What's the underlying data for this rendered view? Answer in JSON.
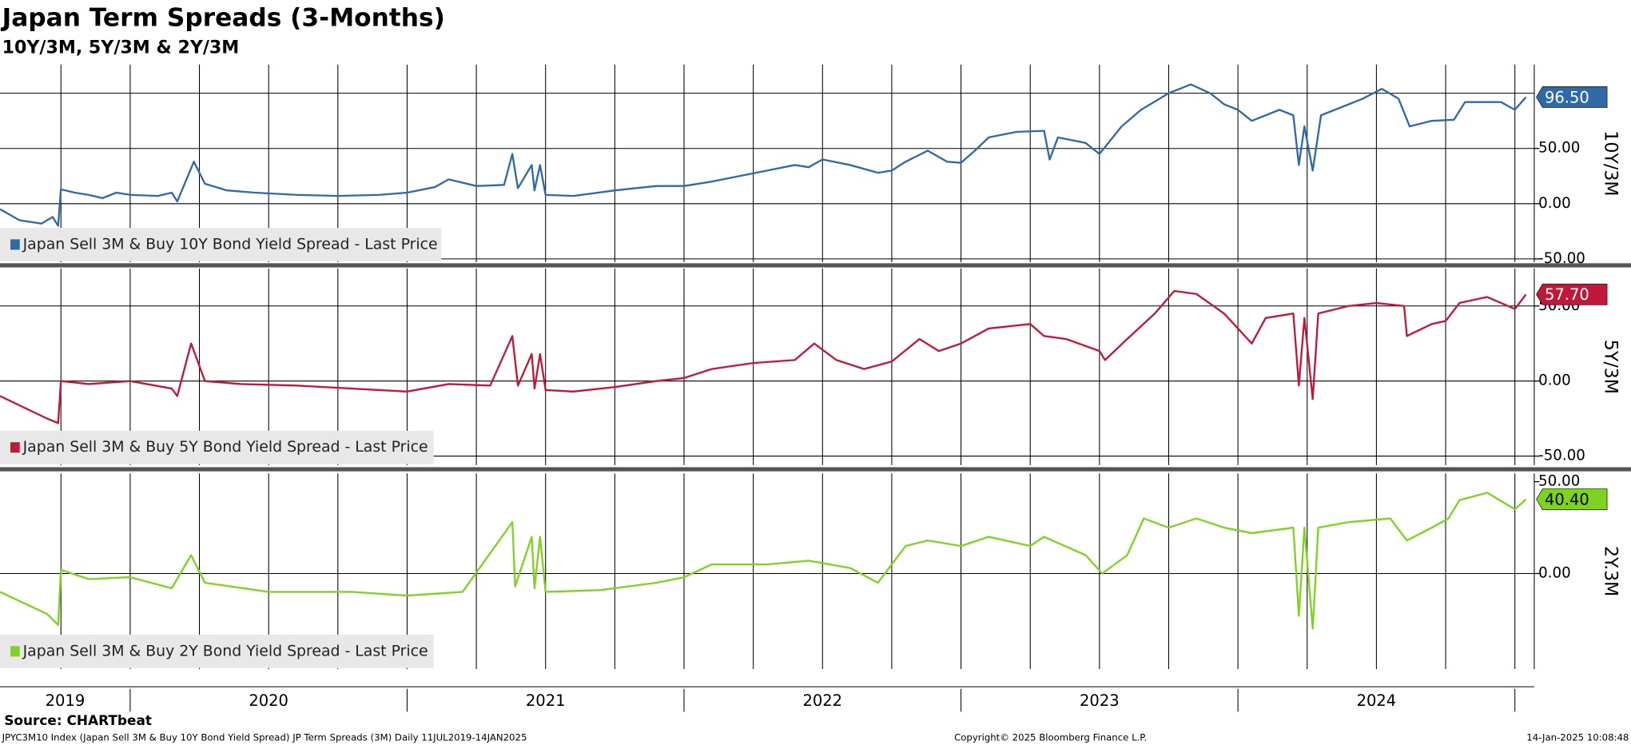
{
  "header": {
    "title": "Japan Term Spreads (3-Months)",
    "subtitle": "10Y/3M, 5Y/3M & 2Y/3M"
  },
  "footer": {
    "source": "Source: CHARTbeat",
    "info": "JPYC3M10 Index (Japan Sell 3M & Buy 10Y Bond Yield Spread) JP Term Spreads (3M)  Daily 11JUL2019-14JAN2025",
    "copyright": "Copyright© 2025 Bloomberg Finance L.P.",
    "timestamp": "14-Jan-2025 10:08:48"
  },
  "chart_data": [
    {
      "type": "line",
      "axis_label": "10Y/3M",
      "xlim": [
        2019.53,
        2025.07
      ],
      "ylim": [
        -53,
        126
      ],
      "xgrid": [
        2019.75,
        2020,
        2020.25,
        2020.5,
        2020.75,
        2021,
        2021.25,
        2021.5,
        2021.75,
        2022,
        2022.25,
        2022.5,
        2022.75,
        2023,
        2023.25,
        2023.5,
        2023.75,
        2024,
        2024.25,
        2024.5,
        2024.75,
        2025
      ],
      "yticks": [
        {
          "value": -50,
          "label": "-50.00"
        },
        {
          "value": 0,
          "label": "0.00"
        },
        {
          "value": 50,
          "label": "50.00"
        }
      ],
      "ygrid": [
        -50,
        0,
        50,
        100
      ],
      "last_label": "96.50",
      "tag_text_color": "#ffffff",
      "x": [
        2019.53,
        2019.6,
        2019.68,
        2019.72,
        2019.74,
        2019.75,
        2019.8,
        2019.85,
        2019.9,
        2019.95,
        2020.0,
        2020.1,
        2020.15,
        2020.17,
        2020.2,
        2020.23,
        2020.27,
        2020.35,
        2020.45,
        2020.6,
        2020.75,
        2020.9,
        2021.0,
        2021.1,
        2021.15,
        2021.25,
        2021.35,
        2021.38,
        2021.4,
        2021.45,
        2021.46,
        2021.48,
        2021.5,
        2021.6,
        2021.75,
        2021.9,
        2022.0,
        2022.1,
        2022.2,
        2022.3,
        2022.4,
        2022.45,
        2022.5,
        2022.6,
        2022.7,
        2022.75,
        2022.8,
        2022.88,
        2022.95,
        2023.0,
        2023.05,
        2023.1,
        2023.2,
        2023.3,
        2023.32,
        2023.35,
        2023.45,
        2023.5,
        2023.58,
        2023.65,
        2023.75,
        2023.83,
        2023.9,
        2023.95,
        2024.0,
        2024.05,
        2024.1,
        2024.15,
        2024.2,
        2024.22,
        2024.24,
        2024.27,
        2024.3,
        2024.45,
        2024.52,
        2024.58,
        2024.62,
        2024.7,
        2024.78,
        2024.82,
        2024.95,
        2025.0,
        2025.04
      ],
      "series": [
        {
          "name": "Japan Sell 3M & Buy 10Y Bond Yield Spread - Last Price",
          "color": "#2e6aa8",
          "values": [
            -5,
            -15,
            -18,
            -12,
            -20,
            13,
            10,
            8,
            5,
            10,
            8,
            7,
            10,
            2,
            20,
            38,
            18,
            12,
            10,
            8,
            7,
            8,
            10,
            15,
            22,
            16,
            17,
            45,
            14,
            35,
            12,
            35,
            8,
            7,
            12,
            16,
            16,
            20,
            25,
            30,
            35,
            33,
            40,
            35,
            28,
            30,
            38,
            48,
            38,
            37,
            48,
            60,
            65,
            66,
            40,
            60,
            55,
            45,
            70,
            85,
            100,
            108,
            100,
            90,
            85,
            75,
            80,
            85,
            80,
            35,
            70,
            30,
            80,
            95,
            104,
            95,
            70,
            75,
            76,
            92,
            92,
            85,
            96.5
          ]
        }
      ]
    },
    {
      "type": "line",
      "axis_label": "5Y/3M",
      "xlim": [
        2019.53,
        2025.07
      ],
      "ylim": [
        -56,
        75
      ],
      "xgrid": [
        2019.75,
        2020,
        2020.25,
        2020.5,
        2020.75,
        2021,
        2021.25,
        2021.5,
        2021.75,
        2022,
        2022.25,
        2022.5,
        2022.75,
        2023,
        2023.25,
        2023.5,
        2023.75,
        2024,
        2024.25,
        2024.5,
        2024.75,
        2025
      ],
      "yticks": [
        {
          "value": -50,
          "label": "-50.00"
        },
        {
          "value": 0,
          "label": "0.00"
        },
        {
          "value": 50,
          "label": "50.00"
        }
      ],
      "ygrid": [
        -50,
        0,
        50
      ],
      "last_label": "57.70",
      "tag_text_color": "#ffffff",
      "x": [
        2019.53,
        2019.7,
        2019.74,
        2019.75,
        2019.85,
        2020.0,
        2020.15,
        2020.17,
        2020.22,
        2020.27,
        2020.4,
        2020.6,
        2020.8,
        2021.0,
        2021.15,
        2021.3,
        2021.38,
        2021.4,
        2021.45,
        2021.46,
        2021.48,
        2021.5,
        2021.6,
        2021.75,
        2021.9,
        2022.0,
        2022.1,
        2022.25,
        2022.4,
        2022.47,
        2022.55,
        2022.65,
        2022.75,
        2022.85,
        2022.92,
        2023.0,
        2023.1,
        2023.25,
        2023.3,
        2023.38,
        2023.5,
        2023.52,
        2023.6,
        2023.7,
        2023.77,
        2023.85,
        2023.95,
        2024.0,
        2024.05,
        2024.1,
        2024.2,
        2024.22,
        2024.24,
        2024.27,
        2024.29,
        2024.4,
        2024.5,
        2024.6,
        2024.61,
        2024.7,
        2024.75,
        2024.8,
        2024.9,
        2025.0,
        2025.04
      ],
      "series": [
        {
          "name": "Japan Sell 3M & Buy 5Y Bond Yield Spread - Last Price",
          "color": "#c0183a",
          "values": [
            -10,
            -25,
            -28,
            0,
            -2,
            0,
            -5,
            -10,
            25,
            0,
            -2,
            -3,
            -5,
            -7,
            -2,
            -3,
            30,
            -3,
            18,
            -5,
            18,
            -6,
            -7,
            -4,
            0,
            2,
            8,
            12,
            14,
            25,
            14,
            8,
            13,
            28,
            20,
            25,
            35,
            38,
            30,
            28,
            20,
            14,
            28,
            45,
            60,
            58,
            45,
            35,
            25,
            42,
            45,
            -3,
            42,
            -12,
            45,
            50,
            52,
            50,
            30,
            38,
            40,
            52,
            56,
            48,
            57.7
          ]
        }
      ]
    },
    {
      "type": "line",
      "axis_label": "2Y.3M",
      "xlim": [
        2019.53,
        2025.07
      ],
      "ylim": [
        -52,
        54.5
      ],
      "xgrid": [
        2019.75,
        2020,
        2020.25,
        2020.5,
        2020.75,
        2021,
        2021.25,
        2021.5,
        2021.75,
        2022,
        2022.25,
        2022.5,
        2022.75,
        2023,
        2023.25,
        2023.5,
        2023.75,
        2024,
        2024.25,
        2024.5,
        2024.75,
        2025
      ],
      "yticks": [
        {
          "value": 0,
          "label": "0.00"
        },
        {
          "value": 50,
          "label": "50.00"
        }
      ],
      "ygrid": [
        0
      ],
      "last_label": "40.40",
      "tag_text_color": "#000000",
      "xticks": [
        {
          "value": 2019.765,
          "label": "2019"
        },
        {
          "value": 2020.5,
          "label": "2020"
        },
        {
          "value": 2021.5,
          "label": "2021"
        },
        {
          "value": 2022.5,
          "label": "2022"
        },
        {
          "value": 2023.5,
          "label": "2023"
        },
        {
          "value": 2024.5,
          "label": "2024"
        }
      ],
      "xseparators": [
        2020,
        2021,
        2022,
        2023,
        2024,
        2025
      ],
      "x": [
        2019.53,
        2019.7,
        2019.74,
        2019.75,
        2019.85,
        2020.0,
        2020.15,
        2020.22,
        2020.27,
        2020.5,
        2020.8,
        2021.0,
        2021.2,
        2021.38,
        2021.39,
        2021.45,
        2021.46,
        2021.48,
        2021.5,
        2021.7,
        2021.9,
        2022.0,
        2022.1,
        2022.3,
        2022.45,
        2022.6,
        2022.7,
        2022.8,
        2022.88,
        2023.0,
        2023.1,
        2023.25,
        2023.3,
        2023.45,
        2023.51,
        2023.6,
        2023.66,
        2023.75,
        2023.85,
        2023.95,
        2024.05,
        2024.2,
        2024.22,
        2024.24,
        2024.27,
        2024.29,
        2024.4,
        2024.55,
        2024.61,
        2024.7,
        2024.76,
        2024.8,
        2024.9,
        2025.0,
        2025.04
      ],
      "series": [
        {
          "name": "Japan Sell 3M & Buy 2Y Bond Yield Spread - Last Price",
          "color": "#7ed321",
          "values": [
            -10,
            -22,
            -28,
            2,
            -3,
            -2,
            -8,
            10,
            -5,
            -10,
            -10,
            -12,
            -10,
            28,
            -7,
            20,
            -8,
            20,
            -10,
            -9,
            -5,
            -2,
            5,
            5,
            7,
            3,
            -5,
            15,
            18,
            15,
            20,
            15,
            20,
            10,
            0,
            10,
            30,
            25,
            30,
            25,
            22,
            25,
            -23,
            25,
            -30,
            25,
            28,
            30,
            18,
            25,
            30,
            40,
            44,
            35,
            40.4
          ]
        }
      ]
    }
  ]
}
